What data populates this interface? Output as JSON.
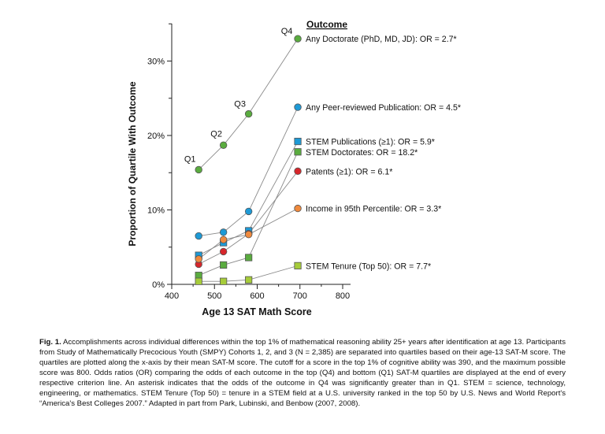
{
  "chart_data": {
    "type": "scatter",
    "xlabel": "Age 13 SAT Math Score",
    "ylabel": "Proportion of Quartile With Outcome",
    "xlim": [
      400,
      800
    ],
    "ylim": [
      0,
      35
    ],
    "x_ticks": [
      "400",
      "500",
      "600",
      "700",
      "800"
    ],
    "y_ticks": [
      "0%",
      "10%",
      "20%",
      "30%"
    ],
    "legend_title": "Outcome",
    "quartile_labels": [
      "Q1",
      "Q2",
      "Q3",
      "Q4"
    ],
    "quartile_x": [
      463,
      521,
      580,
      695
    ],
    "series": [
      {
        "name": "Any Doctorate  (PhD, MD, JD): OR = 2.7*",
        "marker": "circle",
        "color": "#5aac3f",
        "values": [
          15.4,
          18.7,
          22.9,
          33.0
        ]
      },
      {
        "name": "Any Peer-reviewed Publication: OR = 4.5*",
        "marker": "circle",
        "color": "#1e9ad6",
        "values": [
          6.5,
          7.0,
          9.8,
          23.8
        ]
      },
      {
        "name": "STEM Publications (≥1): OR = 5.9*",
        "marker": "square",
        "color": "#1e9ad6",
        "values": [
          3.9,
          5.6,
          7.2,
          19.2
        ]
      },
      {
        "name": "STEM Doctorates: OR = 18.2*",
        "marker": "square",
        "color": "#5aac3f",
        "values": [
          1.2,
          2.6,
          3.6,
          17.8
        ]
      },
      {
        "name": "Patents (≥1): OR = 6.1*",
        "marker": "circle",
        "color": "#d7262b",
        "values": [
          2.7,
          4.4,
          6.8,
          15.2
        ]
      },
      {
        "name": "Income in 95th Percentile: OR = 3.3*",
        "marker": "circle",
        "color": "#f08a3d",
        "values": [
          3.4,
          6.0,
          6.7,
          10.2
        ]
      },
      {
        "name": "STEM Tenure (Top 50): OR = 7.7*",
        "marker": "square",
        "color": "#a6cc3a",
        "values": [
          0.4,
          0.4,
          0.6,
          2.5
        ]
      }
    ]
  },
  "caption": {
    "label": "Fig. 1.",
    "text": "Accomplishments across individual differences within the top 1% of mathematical reasoning ability 25+ years after identification at age 13. Participants from Study of Mathematically Precocious Youth (SMPY) Cohorts 1, 2, and 3 (N = 2,385) are separated into quartiles based on their age-13 SAT-M score. The quartiles are plotted along the x-axis by their mean SAT-M score. The cutoff for a score in the top 1% of cognitive ability was 390, and the maximum possible score was 800. Odds ratios (OR) comparing the odds of each outcome in the top (Q4) and bottom (Q1) SAT-M quartiles are displayed at the end of every respective criterion line. An asterisk indicates that the odds of the outcome in Q4 was significantly greater than in Q1. STEM = science, technology, engineering, or mathematics. STEM Tenure (Top 50) = tenure in a STEM field at a U.S. university ranked in the top 50 by U.S. News and World Report's “America's Best Colleges 2007.” Adapted in part from Park, Lubinski, and Benbow (2007, 2008)."
  }
}
